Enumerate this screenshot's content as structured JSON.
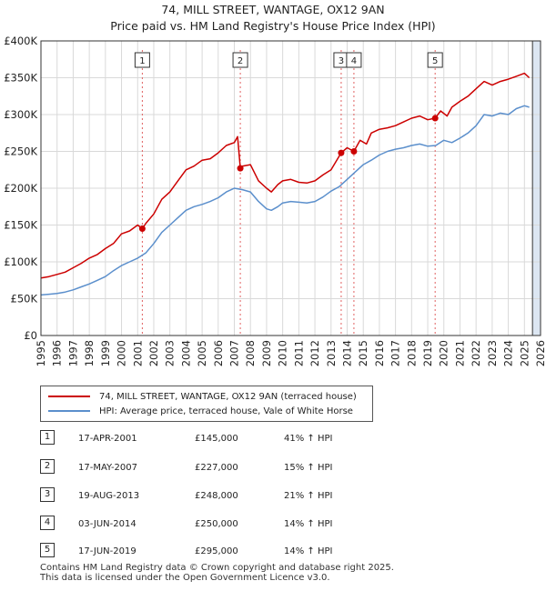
{
  "titles": {
    "line1": "74, MILL STREET, WANTAGE, OX12 9AN",
    "line2": "Price paid vs. HM Land Registry's House Price Index (HPI)"
  },
  "colors": {
    "property": "#cc0000",
    "hpi": "#5b8fcc",
    "shade": "#dce6f2",
    "marker": "#e06060"
  },
  "chart_data": {
    "type": "line",
    "title": "74, MILL STREET, WANTAGE, OX12 9AN",
    "subtitle": "Price paid vs. HM Land Registry's House Price Index (HPI)",
    "xlabel": "",
    "ylabel": "",
    "xlim": [
      1995,
      2026
    ],
    "ylim": [
      0,
      400000
    ],
    "grid": true,
    "y_ticks": [
      0,
      50000,
      100000,
      150000,
      200000,
      250000,
      300000,
      350000,
      400000
    ],
    "y_tick_labels": [
      "£0",
      "£50K",
      "£100K",
      "£150K",
      "£200K",
      "£250K",
      "£300K",
      "£350K",
      "£400K"
    ],
    "x_ticks": [
      1995,
      1996,
      1997,
      1998,
      1999,
      2000,
      2001,
      2002,
      2003,
      2004,
      2005,
      2006,
      2007,
      2008,
      2009,
      2010,
      2011,
      2012,
      2013,
      2014,
      2015,
      2016,
      2017,
      2018,
      2019,
      2020,
      2021,
      2022,
      2023,
      2024,
      2025,
      2026
    ],
    "shaded_region": {
      "from": 2025.5,
      "to": 2026
    },
    "series": [
      {
        "name": "74, MILL STREET, WANTAGE, OX12 9AN (terraced house)",
        "x": [
          1995.0,
          1995.5,
          1996.0,
          1996.5,
          1997.0,
          1997.5,
          1998.0,
          1998.5,
          1999.0,
          1999.5,
          2000.0,
          2000.5,
          2001.0,
          2001.29,
          2001.5,
          2002.0,
          2002.5,
          2003.0,
          2003.5,
          2004.0,
          2004.5,
          2005.0,
          2005.5,
          2006.0,
          2006.5,
          2007.0,
          2007.2,
          2007.37,
          2007.5,
          2008.0,
          2008.5,
          2009.0,
          2009.3,
          2009.7,
          2010.0,
          2010.5,
          2011.0,
          2011.5,
          2012.0,
          2012.5,
          2013.0,
          2013.63,
          2014.0,
          2014.42,
          2014.8,
          2015.2,
          2015.5,
          2016.0,
          2016.5,
          2017.0,
          2017.5,
          2018.0,
          2018.5,
          2019.0,
          2019.46,
          2019.8,
          2020.2,
          2020.5,
          2021.0,
          2021.5,
          2022.0,
          2022.5,
          2023.0,
          2023.5,
          2024.0,
          2024.5,
          2025.0,
          2025.3
        ],
        "values": [
          78000,
          80000,
          83000,
          86000,
          92000,
          98000,
          105000,
          110000,
          118000,
          125000,
          138000,
          142000,
          150000,
          145000,
          152000,
          165000,
          185000,
          195000,
          210000,
          225000,
          230000,
          238000,
          240000,
          248000,
          258000,
          262000,
          270000,
          227000,
          230000,
          232000,
          210000,
          200000,
          195000,
          205000,
          210000,
          212000,
          208000,
          207000,
          210000,
          218000,
          225000,
          248000,
          255000,
          250000,
          265000,
          260000,
          275000,
          280000,
          282000,
          285000,
          290000,
          295000,
          298000,
          293000,
          295000,
          305000,
          298000,
          310000,
          318000,
          325000,
          335000,
          345000,
          340000,
          345000,
          348000,
          352000,
          356000,
          350000
        ]
      },
      {
        "name": "HPI: Average price, terraced house, Vale of White Horse",
        "x": [
          1995.0,
          1995.5,
          1996.0,
          1996.5,
          1997.0,
          1997.5,
          1998.0,
          1998.5,
          1999.0,
          1999.5,
          2000.0,
          2000.5,
          2001.0,
          2001.5,
          2002.0,
          2002.5,
          2003.0,
          2003.5,
          2004.0,
          2004.5,
          2005.0,
          2005.5,
          2006.0,
          2006.5,
          2007.0,
          2007.5,
          2008.0,
          2008.5,
          2009.0,
          2009.3,
          2009.7,
          2010.0,
          2010.5,
          2011.0,
          2011.5,
          2012.0,
          2012.5,
          2013.0,
          2013.5,
          2014.0,
          2014.5,
          2015.0,
          2015.5,
          2016.0,
          2016.5,
          2017.0,
          2017.5,
          2018.0,
          2018.5,
          2019.0,
          2019.5,
          2020.0,
          2020.5,
          2021.0,
          2021.5,
          2022.0,
          2022.5,
          2023.0,
          2023.5,
          2024.0,
          2024.5,
          2025.0,
          2025.3
        ],
        "values": [
          55000,
          56000,
          57000,
          59000,
          62000,
          66000,
          70000,
          75000,
          80000,
          88000,
          95000,
          100000,
          105000,
          112000,
          125000,
          140000,
          150000,
          160000,
          170000,
          175000,
          178000,
          182000,
          187000,
          195000,
          200000,
          198000,
          195000,
          182000,
          172000,
          170000,
          175000,
          180000,
          182000,
          181000,
          180000,
          182000,
          188000,
          196000,
          202000,
          212000,
          222000,
          232000,
          238000,
          245000,
          250000,
          253000,
          255000,
          258000,
          260000,
          257000,
          258000,
          265000,
          262000,
          268000,
          275000,
          285000,
          300000,
          298000,
          302000,
          300000,
          308000,
          312000,
          310000
        ]
      }
    ],
    "annotations": [
      {
        "label": "1",
        "x": 2001.29,
        "value": 145000
      },
      {
        "label": "2",
        "x": 2007.37,
        "value": 227000
      },
      {
        "label": "3",
        "x": 2013.63,
        "value": 248000
      },
      {
        "label": "4",
        "x": 2014.42,
        "value": 250000
      },
      {
        "label": "5",
        "x": 2019.46,
        "value": 295000
      }
    ]
  },
  "legend": {
    "property": "74, MILL STREET, WANTAGE, OX12 9AN (terraced house)",
    "hpi": "HPI: Average price, terraced house, Vale of White Horse"
  },
  "sales": [
    {
      "num": "1",
      "date": "17-APR-2001",
      "price": "£145,000",
      "hpi": "41% ↑ HPI"
    },
    {
      "num": "2",
      "date": "17-MAY-2007",
      "price": "£227,000",
      "hpi": "15% ↑ HPI"
    },
    {
      "num": "3",
      "date": "19-AUG-2013",
      "price": "£248,000",
      "hpi": "21% ↑ HPI"
    },
    {
      "num": "4",
      "date": "03-JUN-2014",
      "price": "£250,000",
      "hpi": "14% ↑ HPI"
    },
    {
      "num": "5",
      "date": "17-JUN-2019",
      "price": "£295,000",
      "hpi": "14% ↑ HPI"
    }
  ],
  "footer": {
    "line1": "Contains HM Land Registry data © Crown copyright and database right 2025.",
    "line2": "This data is licensed under the Open Government Licence v3.0."
  }
}
